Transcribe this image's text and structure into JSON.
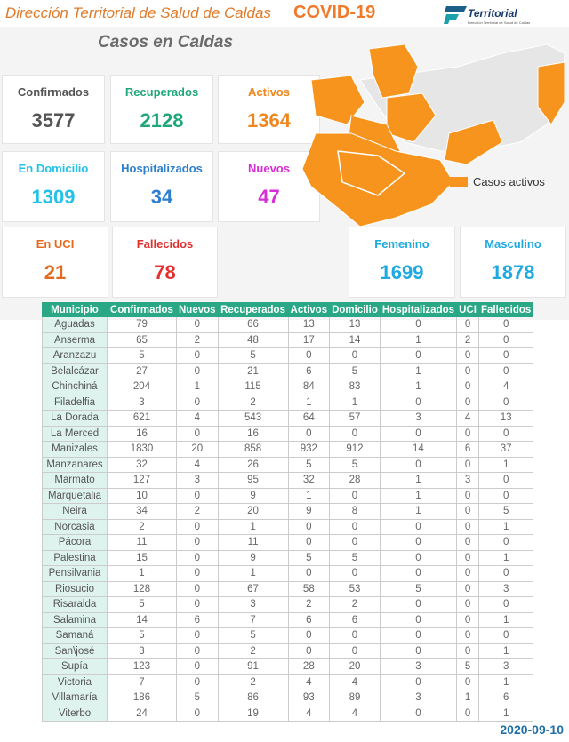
{
  "header": {
    "title": "Dirección Territorial de Salud de Caldas",
    "covid": "COVID-19",
    "logo_text": "Territorial",
    "logo_sub": "Dirección Territorial de Salud de Caldas"
  },
  "subtitle": "Casos en Caldas",
  "cards": [
    {
      "label": "Confirmados",
      "value": "3577",
      "color": "#555555"
    },
    {
      "label": "Recuperados",
      "value": "2128",
      "color": "#1fa67a"
    },
    {
      "label": "Activos",
      "value": "1364",
      "color": "#f0861e"
    },
    {
      "label": "En Domicilio",
      "value": "1309",
      "color": "#22c3e6"
    },
    {
      "label": "Hospitalizados",
      "value": "34",
      "color": "#2f7fd0"
    },
    {
      "label": "Nuevos",
      "value": "47",
      "color": "#d62fd6"
    },
    {
      "label": "En UCI",
      "value": "21",
      "color": "#e66a1e"
    },
    {
      "label": "Fallecidos",
      "value": "78",
      "color": "#e03030"
    },
    {
      "label": "Femenino",
      "value": "1699",
      "color": "#1ea9e0"
    },
    {
      "label": "Masculino",
      "value": "1878",
      "color": "#1ea9e0"
    }
  ],
  "map": {
    "legend": "Casos activos",
    "active_color": "#f7941d",
    "inactive_color": "#e6e6e6"
  },
  "table": {
    "headers": [
      "Municipio",
      "Confirmados",
      "Nuevos",
      "Recuperados",
      "Activos",
      "Domicilio",
      "Hospitalizados",
      "UCI",
      "Fallecidos"
    ],
    "rows": [
      [
        "Aguadas",
        "79",
        "0",
        "66",
        "13",
        "13",
        "0",
        "0",
        "0"
      ],
      [
        "Anserma",
        "65",
        "2",
        "48",
        "17",
        "14",
        "1",
        "2",
        "0"
      ],
      [
        "Aranzazu",
        "5",
        "0",
        "5",
        "0",
        "0",
        "0",
        "0",
        "0"
      ],
      [
        "Belalcázar",
        "27",
        "0",
        "21",
        "6",
        "5",
        "1",
        "0",
        "0"
      ],
      [
        "Chinchiná",
        "204",
        "1",
        "115",
        "84",
        "83",
        "1",
        "0",
        "4"
      ],
      [
        "Filadelfia",
        "3",
        "0",
        "2",
        "1",
        "1",
        "0",
        "0",
        "0"
      ],
      [
        "La Dorada",
        "621",
        "4",
        "543",
        "64",
        "57",
        "3",
        "4",
        "13"
      ],
      [
        "La Merced",
        "16",
        "0",
        "16",
        "0",
        "0",
        "0",
        "0",
        "0"
      ],
      [
        "Manizales",
        "1830",
        "20",
        "858",
        "932",
        "912",
        "14",
        "6",
        "37"
      ],
      [
        "Manzanares",
        "32",
        "4",
        "26",
        "5",
        "5",
        "0",
        "0",
        "1"
      ],
      [
        "Marmato",
        "127",
        "3",
        "95",
        "32",
        "28",
        "1",
        "3",
        "0"
      ],
      [
        "Marquetalia",
        "10",
        "0",
        "9",
        "1",
        "0",
        "1",
        "0",
        "0"
      ],
      [
        "Neira",
        "34",
        "2",
        "20",
        "9",
        "8",
        "1",
        "0",
        "5"
      ],
      [
        "Norcasia",
        "2",
        "0",
        "1",
        "0",
        "0",
        "0",
        "0",
        "1"
      ],
      [
        "Pácora",
        "11",
        "0",
        "11",
        "0",
        "0",
        "0",
        "0",
        "0"
      ],
      [
        "Palestina",
        "15",
        "0",
        "9",
        "5",
        "5",
        "0",
        "0",
        "1"
      ],
      [
        "Pensilvania",
        "1",
        "0",
        "1",
        "0",
        "0",
        "0",
        "0",
        "0"
      ],
      [
        "Riosucio",
        "128",
        "0",
        "67",
        "58",
        "53",
        "5",
        "0",
        "3"
      ],
      [
        "Risaralda",
        "5",
        "0",
        "3",
        "2",
        "2",
        "0",
        "0",
        "0"
      ],
      [
        "Salamina",
        "14",
        "6",
        "7",
        "6",
        "6",
        "0",
        "0",
        "1"
      ],
      [
        "Samaná",
        "5",
        "0",
        "5",
        "0",
        "0",
        "0",
        "0",
        "0"
      ],
      [
        "San\\josé",
        "3",
        "0",
        "2",
        "0",
        "0",
        "0",
        "0",
        "1"
      ],
      [
        "Supía",
        "123",
        "0",
        "91",
        "28",
        "20",
        "3",
        "5",
        "3"
      ],
      [
        "Victoria",
        "7",
        "0",
        "2",
        "4",
        "4",
        "0",
        "0",
        "1"
      ],
      [
        "Villamaría",
        "186",
        "5",
        "86",
        "93",
        "89",
        "3",
        "1",
        "6"
      ],
      [
        "Viterbo",
        "24",
        "0",
        "19",
        "4",
        "4",
        "0",
        "0",
        "1"
      ]
    ]
  },
  "date": "2020-09-10"
}
